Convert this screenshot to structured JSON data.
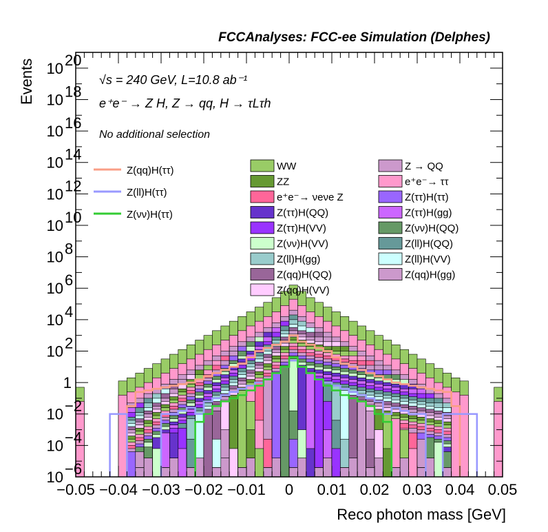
{
  "chart_data": {
    "type": "bar",
    "stacked": true,
    "title": "FCCAnalyses: FCC-ee Simulation (Delphes)",
    "annotations": [
      "√s = 240 GeV, L=10.8 ab⁻¹",
      "e⁺e⁻ → Z H, Z → qq, H → τLτh",
      "No additional selection"
    ],
    "xlabel": "Reco photon mass [GeV]",
    "ylabel": "Events",
    "xlim": [
      -0.05,
      0.05
    ],
    "ylim_log10": [
      -6,
      21
    ],
    "log_y": true,
    "x_ticks": [
      "−0.05",
      "−0.04",
      "−0.03",
      "−0.02",
      "−0.01",
      "0",
      "0.01",
      "0.02",
      "0.03",
      "0.04",
      "0.05"
    ],
    "y_ticks": [
      {
        "base": "10",
        "exp": "20",
        "log": 20
      },
      {
        "base": "10",
        "exp": "18",
        "log": 18
      },
      {
        "base": "10",
        "exp": "16",
        "log": 16
      },
      {
        "base": "10",
        "exp": "14",
        "log": 14
      },
      {
        "base": "10",
        "exp": "12",
        "log": 12
      },
      {
        "base": "10",
        "exp": "10",
        "log": 10
      },
      {
        "base": "10",
        "exp": "8",
        "log": 8
      },
      {
        "base": "10",
        "exp": "6",
        "log": 6
      },
      {
        "base": "10",
        "exp": "4",
        "log": 4
      },
      {
        "base": "10",
        "exp": "2",
        "log": 2
      },
      {
        "base": "1",
        "exp": "",
        "log": 0
      },
      {
        "base": "10",
        "exp": "−2",
        "log": -2
      },
      {
        "base": "10",
        "exp": "−4",
        "log": -4
      },
      {
        "base": "10",
        "exp": "−6",
        "log": -6
      }
    ],
    "bins": 50,
    "stack_totals_log10": [
      -0.3,
      -6,
      -6,
      -6,
      -6,
      0.1,
      0.3,
      0.6,
      0.9,
      1.2,
      1.5,
      1.8,
      2.1,
      2.4,
      2.7,
      3.0,
      3.3,
      3.6,
      3.9,
      4.2,
      4.5,
      4.8,
      5.1,
      5.4,
      5.8,
      6.2,
      5.8,
      5.4,
      5.1,
      4.8,
      4.5,
      4.2,
      3.9,
      3.6,
      3.3,
      3.0,
      2.7,
      2.4,
      2.1,
      1.8,
      1.5,
      1.2,
      0.9,
      0.6,
      0.3,
      0.1,
      -6,
      -6,
      -6,
      -0.3
    ],
    "signals": [
      {
        "name": "Z(qq)H(ττ)",
        "color": "#f99e86",
        "values_log10": [
          -6,
          -6,
          -6,
          -6,
          -6,
          -6,
          -1.5,
          -0.6,
          -0.5,
          -0.4,
          -0.3,
          -0.2,
          -0.1,
          0.0,
          0.2,
          0.4,
          0.6,
          0.8,
          1.0,
          1.2,
          1.6,
          2.0,
          2.2,
          2.4,
          2.6,
          3.0,
          2.6,
          2.4,
          2.2,
          2.0,
          1.6,
          1.2,
          1.0,
          0.8,
          0.6,
          0.4,
          0.2,
          0.0,
          -0.1,
          -0.2,
          -0.3,
          -0.4,
          -0.5,
          -0.6,
          -1.5,
          -6,
          -6,
          -6,
          -6,
          -6
        ]
      },
      {
        "name": "Z(ll)H(ττ)",
        "color": "#9999ff",
        "values_log10": [
          -6,
          -6,
          -6,
          -6,
          -2,
          -2,
          -6,
          -6,
          -6,
          -6,
          -2,
          -2,
          -1.8,
          -1.6,
          -2,
          -1.2,
          -1.0,
          -0.8,
          -0.6,
          -0.4,
          -0.2,
          0.0,
          0.2,
          0.6,
          1.0,
          1.4,
          1.0,
          0.6,
          0.2,
          0.0,
          -0.2,
          -0.4,
          -0.6,
          -0.8,
          -1.0,
          -1.2,
          -2,
          -1.6,
          -1.8,
          -2,
          -2,
          -6,
          -6,
          -2,
          -2,
          -2,
          -2,
          -6,
          -6,
          -6
        ]
      },
      {
        "name": "Z(νν)H(ττ)",
        "color": "#33cc33",
        "values_log10": [
          -6,
          -6,
          -6,
          -6,
          -6,
          -6,
          -6,
          -6,
          -6,
          -6,
          -6,
          -6,
          -6,
          -6,
          -2.5,
          -2,
          -1.5,
          -1.2,
          -1.0,
          -0.8,
          -0.5,
          -0.2,
          0.2,
          0.6,
          1.0,
          1.6,
          1.0,
          0.6,
          0.2,
          -0.2,
          -0.5,
          -0.8,
          -1.0,
          -1.2,
          -1.5,
          -2,
          -2.5,
          -6,
          -6,
          -6,
          -6,
          -6,
          -6,
          -6,
          -6,
          -6,
          -6,
          -6,
          -6,
          -6
        ]
      }
    ],
    "backgrounds_legend": [
      {
        "label": "WW",
        "color": "#99cc66"
      },
      {
        "label": "Z → QQ",
        "color": "#cc99cc"
      },
      {
        "label": "ZZ",
        "color": "#669933"
      },
      {
        "label": "e⁺e⁻→ ττ",
        "color": "#ff99cc"
      },
      {
        "label": "e⁺e⁻→ νeνe Z",
        "color": "#ff6699"
      },
      {
        "label": "Z(ττ)H(ττ)",
        "color": "#9966ff"
      },
      {
        "label": "Z(ττ)H(QQ)",
        "color": "#6633cc"
      },
      {
        "label": "Z(ττ)H(gg)",
        "color": "#cc66ff"
      },
      {
        "label": "Z(ττ)H(VV)",
        "color": "#9933ff"
      },
      {
        "label": "Z(νν)H(QQ)",
        "color": "#669966"
      },
      {
        "label": "Z(νν)H(VV)",
        "color": "#ccffcc"
      },
      {
        "label": "Z(ll)H(QQ)",
        "color": "#669999"
      },
      {
        "label": "Z(ll)H(gg)",
        "color": "#99cccc"
      },
      {
        "label": "Z(ll)H(VV)",
        "color": "#ccffff"
      },
      {
        "label": "Z(qq)H(QQ)",
        "color": "#996699"
      },
      {
        "label": "Z(qq)H(gg)",
        "color": "#cc99cc"
      },
      {
        "label": "Z(qq)H(VV)",
        "color": "#ffccff"
      }
    ],
    "signals_legend": [
      {
        "label": "Z(qq)H(ττ)",
        "color": "#f99e86"
      },
      {
        "label": "Z(ll)H(ττ)",
        "color": "#9999ff"
      },
      {
        "label": "Z(νν)H(ττ)",
        "color": "#33cc33"
      }
    ]
  }
}
